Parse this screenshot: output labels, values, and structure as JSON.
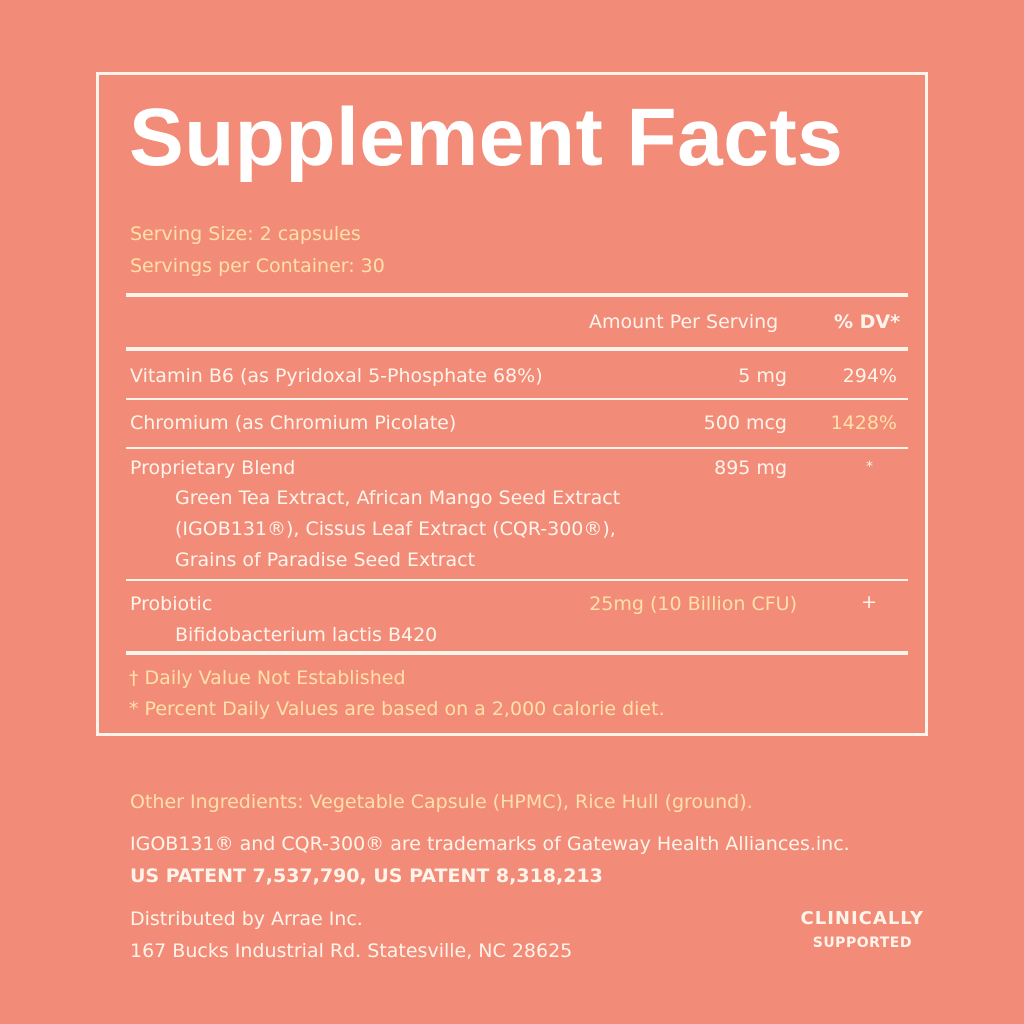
{
  "title": "Supplement Facts",
  "serving_size": "Serving Size: 2 capsules",
  "servings_per_container": "Servings per Container: 30",
  "header": {
    "amount": "Amount Per Serving",
    "dv": "% DV*"
  },
  "rows": [
    {
      "name": "Vitamin B6 (as Pyridoxal 5-Phosphate 68%)",
      "amount": "5 mg",
      "dv": "294%"
    },
    {
      "name": "Chromium (as Chromium Picolate)",
      "amount": "500 mcg",
      "dv": "1428%"
    },
    {
      "name": "Proprietary Blend",
      "amount": "895 mg",
      "dv": "*",
      "sub": [
        "Green Tea Extract, African Mango Seed Extract",
        "(IGOB131®), Cissus Leaf Extract (CQR-300®),",
        "Grains of Paradise Seed Extract"
      ]
    },
    {
      "name": "Probiotic",
      "amount": "25mg (10 Billion CFU)",
      "dv": "+",
      "sub": [
        "Bifidobacterium lactis B420"
      ]
    }
  ],
  "footnotes": [
    "† Daily Value Not Established",
    "*  Percent Daily Values are based on a 2,000 calorie diet."
  ],
  "other_ingredients": "Other Ingredients: Vegetable Capsule (HPMC), Rice Hull (ground).",
  "trademark": "IGOB131® and CQR-300® are trademarks of Gateway Health Alliances.inc.",
  "patent": "US PATENT 7,537,790, US PATENT 8,318,213",
  "distributor": "Distributed by Arrae Inc.",
  "address": "167 Bucks Industrial Rd. Statesville, NC 28625",
  "badge": {
    "line1": "CLINICALLY",
    "line2": "SUPPORTED"
  }
}
